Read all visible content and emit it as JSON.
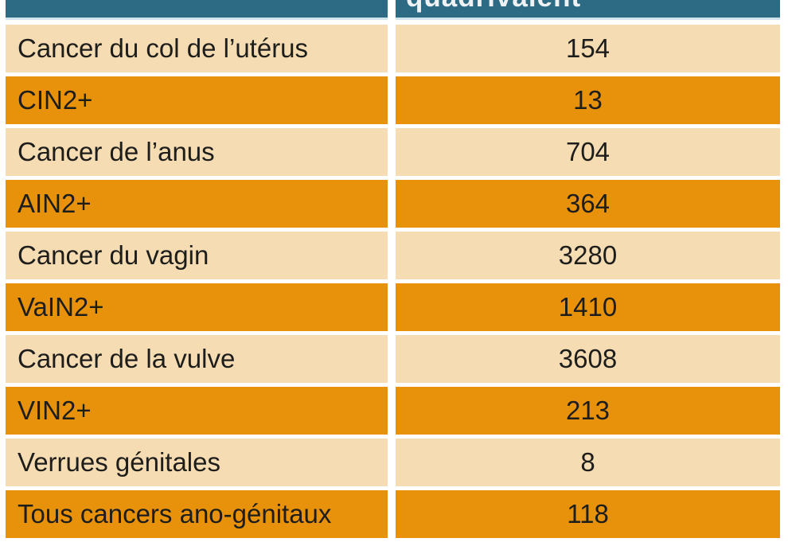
{
  "table": {
    "header": {
      "col1_label": "",
      "col2_label": "quadrivalent"
    },
    "rows": [
      {
        "label": "Cancer du col de l’utérus",
        "value": "154",
        "variant": "peach"
      },
      {
        "label": "CIN2+",
        "value": "13",
        "variant": "orange"
      },
      {
        "label": "Cancer de l’anus",
        "value": "704",
        "variant": "peach"
      },
      {
        "label": "AIN2+",
        "value": "364",
        "variant": "orange"
      },
      {
        "label": "Cancer du vagin",
        "value": "3280",
        "variant": "peach"
      },
      {
        "label": "VaIN2+",
        "value": "1410",
        "variant": "orange"
      },
      {
        "label": "Cancer de la vulve",
        "value": "3608",
        "variant": "peach"
      },
      {
        "label": "VIN2+",
        "value": "213",
        "variant": "orange"
      },
      {
        "label": "Verrues génitales",
        "value": "8",
        "variant": "peach"
      },
      {
        "label": "Tous cancers ano-génitaux",
        "value": "118",
        "variant": "orange"
      }
    ]
  },
  "colors": {
    "header_bg": "#2d6a83",
    "header_border": "#cfe3eb",
    "header_text": "#eef2f4",
    "row_peach": "#f6dcb2",
    "row_orange": "#e8920c",
    "text": "#1d1d1b"
  },
  "chart_data": {
    "type": "table",
    "title": "",
    "columns": [
      "",
      "quadrivalent"
    ],
    "rows": [
      [
        "Cancer du col de l’utérus",
        154
      ],
      [
        "CIN2+",
        13
      ],
      [
        "Cancer de l’anus",
        704
      ],
      [
        "AIN2+",
        364
      ],
      [
        "Cancer du vagin",
        3280
      ],
      [
        "VaIN2+",
        1410
      ],
      [
        "Cancer de la vulve",
        3608
      ],
      [
        "VIN2+",
        213
      ],
      [
        "Verrues génitales",
        8
      ],
      [
        "Tous cancers ano-génitaux",
        118
      ]
    ]
  }
}
